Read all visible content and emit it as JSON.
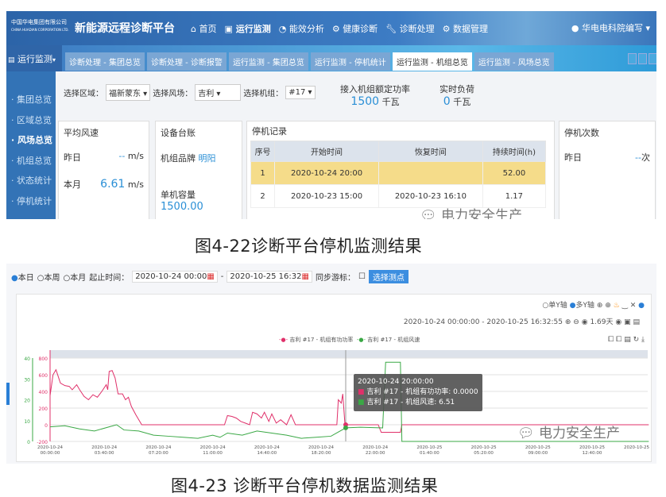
{
  "top": {
    "company": "中国华电集团有限公司",
    "company_en": "CHINA HUADIAN CORPORATION LTD.",
    "app_title": "新能源远程诊断平台",
    "nav": [
      "首页",
      "运行监测",
      "能效分析",
      "健康诊断",
      "诊断处理",
      "数据管理"
    ],
    "user": "华电电科院编写",
    "side_header": "运行监测",
    "tabs": [
      {
        "label": "诊断处理 - 集团总览",
        "active": false
      },
      {
        "label": "诊断处理 - 诊断报警",
        "active": false
      },
      {
        "label": "运行监测 - 集团总览",
        "active": false
      },
      {
        "label": "运行监测 - 停机统计",
        "active": false
      },
      {
        "label": "运行监测 - 机组总览",
        "active": true
      },
      {
        "label": "运行监测 - 风场总览",
        "active": false
      }
    ],
    "sidebar": [
      "集团总览",
      "区域总览",
      "风场总览",
      "机组总览",
      "状态统计",
      "停机统计"
    ],
    "sidebar_selected": "风场总览",
    "filters": {
      "region_label": "选择区域：",
      "region": "福新蒙东",
      "farm_label": "选择风场：",
      "farm": "吉利",
      "unit_label": "选择机组：",
      "unit": "#17"
    },
    "kpi": [
      {
        "label": "接入机组额定功率",
        "value": "1500",
        "unit": "千瓦"
      },
      {
        "label": "实时负荷",
        "value": "0",
        "unit": "千瓦"
      }
    ],
    "wind": {
      "title": "平均风速",
      "rows": [
        {
          "label": "昨日",
          "value": "--",
          "unit": "m/s"
        },
        {
          "label": "本月",
          "value": "6.61",
          "unit": "m/s"
        }
      ]
    },
    "device": {
      "title": "设备台账",
      "brand_label": "机组品牌",
      "brand": "明阳",
      "cap_label": "单机容量",
      "cap": "1500.00"
    },
    "stops": {
      "title": "停机记录",
      "headers": [
        "序号",
        "开始时间",
        "恢复时间",
        "持续时间(h)"
      ],
      "rows": [
        [
          "1",
          "2020-10-24 20:00",
          "",
          "52.00"
        ],
        [
          "2",
          "2020-10-23 15:00",
          "2020-10-23 16:10",
          "1.17"
        ]
      ]
    },
    "count": {
      "title": "停机次数",
      "rows": [
        {
          "label": "昨日",
          "value": "--",
          "unit": "次"
        }
      ]
    },
    "watermark": "电力安全生产"
  },
  "caption1": "图4-22诊断平台停机监测结果",
  "bottom": {
    "radios": [
      "本日",
      "本周",
      "本月"
    ],
    "radio_selected": "本日",
    "range_label": "起止时间：",
    "start": "2020-10-24 00:00",
    "end": "2020-10-25 16:32",
    "sync_label": "同步游标：",
    "select_button": "选择测点",
    "axis_modes": [
      "单Y轴",
      "多Y轴"
    ],
    "axis_mode_selected": "多Y轴",
    "range_text": "2020-10-24 00:00:00 - 2020-10-25 16:32:55",
    "span": "1.69天",
    "watermark": "电力安全生产"
  },
  "chart_data": {
    "type": "line",
    "x_unit": "hours since 2020-10-24 00:00:00",
    "xticks": [
      "2020-10-24 00:00:00",
      "2020-10-24 03:40:00",
      "2020-10-24 07:20:00",
      "2020-10-24 11:00:00",
      "2020-10-24 14:40:00",
      "2020-10-24 18:20:00",
      "2020-10-24 22:00:00",
      "2020-10-25 01:40:00",
      "2020-10-25 05:20:00",
      "2020-10-25 09:00:00",
      "2020-10-25 12:40:00",
      "2020-10-25"
    ],
    "y1": {
      "ticks": [
        "-200",
        "0",
        "200",
        "400",
        "600",
        "800"
      ],
      "range": [
        -200,
        800
      ],
      "color": "#e0306a"
    },
    "y2": {
      "ticks": [
        "0",
        "10",
        "20",
        "30",
        "40"
      ],
      "range": [
        0,
        40
      ],
      "color": "#3aa845"
    },
    "legend": [
      "吉利 #17 - 机组有功功率",
      "吉利 #17 - 机组风速"
    ],
    "series": [
      {
        "name": "吉利 #17 - 机组有功功率",
        "axis": "y1",
        "color": "#e0306a",
        "points": [
          [
            0,
            350
          ],
          [
            0.2,
            600
          ],
          [
            0.4,
            660
          ],
          [
            0.7,
            500
          ],
          [
            1.0,
            470
          ],
          [
            1.3,
            460
          ],
          [
            1.5,
            420
          ],
          [
            1.8,
            480
          ],
          [
            2.0,
            420
          ],
          [
            2.3,
            340
          ],
          [
            2.6,
            300
          ],
          [
            2.9,
            360
          ],
          [
            3.2,
            330
          ],
          [
            3.5,
            400
          ],
          [
            3.8,
            480
          ],
          [
            3.9,
            420
          ],
          [
            4.0,
            640
          ],
          [
            4.2,
            650
          ],
          [
            4.4,
            560
          ],
          [
            4.6,
            370
          ],
          [
            4.9,
            370
          ],
          [
            5.1,
            300
          ],
          [
            5.3,
            330
          ],
          [
            5.5,
            220
          ],
          [
            5.8,
            120
          ],
          [
            6.2,
            0
          ],
          [
            11.8,
            0
          ],
          [
            12.0,
            110
          ],
          [
            12.3,
            100
          ],
          [
            12.6,
            80
          ],
          [
            12.9,
            40
          ],
          [
            13.2,
            20
          ],
          [
            13.5,
            0
          ],
          [
            13.7,
            150
          ],
          [
            14.0,
            130
          ],
          [
            14.3,
            80
          ],
          [
            14.5,
            150
          ],
          [
            14.8,
            40
          ],
          [
            15.0,
            130
          ],
          [
            15.3,
            20
          ],
          [
            15.6,
            60
          ],
          [
            16.0,
            0
          ],
          [
            16.3,
            120
          ],
          [
            16.6,
            0
          ],
          [
            19.4,
            0
          ],
          [
            19.5,
            300
          ],
          [
            19.7,
            260
          ],
          [
            19.8,
            370
          ],
          [
            19.95,
            0
          ],
          [
            22.2,
            0
          ],
          [
            22.4,
            -90
          ],
          [
            23.7,
            -90
          ],
          [
            23.8,
            0
          ],
          [
            40.5,
            0
          ]
        ]
      },
      {
        "name": "吉利 #17 - 机组风速",
        "axis": "y2",
        "color": "#3aa845",
        "points": [
          [
            0,
            7
          ],
          [
            1,
            7.5
          ],
          [
            2,
            6
          ],
          [
            3,
            5
          ],
          [
            4,
            7
          ],
          [
            4.5,
            8
          ],
          [
            5,
            5.5
          ],
          [
            6,
            5
          ],
          [
            7,
            3
          ],
          [
            8,
            2.5
          ],
          [
            9,
            2
          ],
          [
            10,
            1.5
          ],
          [
            11,
            3
          ],
          [
            11.5,
            2
          ],
          [
            12,
            4
          ],
          [
            13,
            3
          ],
          [
            14,
            5
          ],
          [
            15,
            4
          ],
          [
            16,
            3
          ],
          [
            17,
            1.5
          ],
          [
            18,
            2
          ],
          [
            19,
            2.5
          ],
          [
            20,
            6.51
          ],
          [
            21,
            6.8
          ],
          [
            22.5,
            6.5
          ],
          [
            22.7,
            38
          ],
          [
            23.7,
            38
          ],
          [
            23.8,
            0
          ],
          [
            40.5,
            0
          ]
        ]
      }
    ],
    "tooltip": {
      "time": "2020-10-24 20:00:00",
      "lines": [
        "吉利 #17 - 机组有功功率: 0.0000",
        "吉利 #17 - 机组风速: 6.51"
      ]
    }
  },
  "caption2": "图4-23 诊断平台停机数据监测结果"
}
